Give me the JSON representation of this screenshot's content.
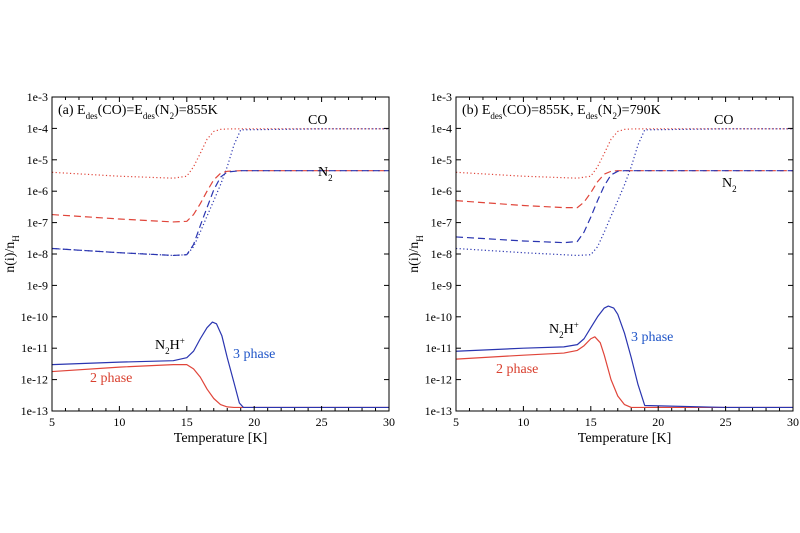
{
  "colors": {
    "red": "#e0453a",
    "blue": "#2a35b0",
    "label_red": "#d9402f",
    "label_blue": "#1f55c8"
  },
  "chart_data": [
    {
      "type": "line",
      "title_parts": {
        "prefix": "(a) E",
        "sub1": "des",
        "mid1": "(CO)=E",
        "sub2": "des",
        "mid2": "(N",
        "sub3": "2",
        "suffix": ")=855K"
      },
      "xlabel": "Temperature [K]",
      "ylabel_parts": {
        "main": "n(i)/n",
        "sub": "H"
      },
      "xlim": [
        5,
        30
      ],
      "ylim": [
        "1e-13",
        "1e-3"
      ],
      "yscale": "log",
      "x_ticks": [
        "5",
        "10",
        "15",
        "20",
        "25",
        "30"
      ],
      "y_ticks": [
        "1e-13",
        "1e-12",
        "1e-11",
        "1e-10",
        "1e-9",
        "1e-8",
        "1e-7",
        "1e-6",
        "1e-5",
        "1e-4",
        "1e-3"
      ],
      "annotations": {
        "co": "CO",
        "n2": {
          "main": "N",
          "sub": "2"
        },
        "n2hp": {
          "main": "N",
          "sub": "2",
          "mid": "H",
          "sup": "+"
        },
        "three_phase": "3 phase",
        "two_phase": "2 phase"
      },
      "series": [
        {
          "name": "CO",
          "phase": "2",
          "color": "red",
          "dash": "dot",
          "x": [
            5,
            10,
            14,
            15,
            15.5,
            16,
            16.5,
            17,
            17.5,
            18,
            19,
            25,
            30
          ],
          "y": [
            4e-06,
            3e-06,
            2.6e-06,
            3e-06,
            6e-06,
            1.6e-05,
            4.5e-05,
            8e-05,
            9.3e-05,
            9.6e-05,
            9.7e-05,
            9.7e-05,
            9.7e-05
          ]
        },
        {
          "name": "CO",
          "phase": "3",
          "color": "blue",
          "dash": "dot",
          "x": [
            5,
            10,
            14,
            15,
            15.5,
            16,
            16.5,
            17,
            17.5,
            18,
            18.5,
            19,
            25,
            30
          ],
          "y": [
            1.5e-08,
            1.1e-08,
            9e-09,
            9.5e-09,
            1.7e-08,
            5e-08,
            1.6e-07,
            5e-07,
            1.6e-06,
            6e-06,
            3e-05,
            9e-05,
            9.7e-05,
            9.7e-05
          ]
        },
        {
          "name": "N2",
          "phase": "2",
          "color": "red",
          "dash": "dash",
          "x": [
            5,
            10,
            14,
            15,
            15.5,
            16,
            16.5,
            17,
            17.5,
            18,
            19,
            25,
            30
          ],
          "y": [
            1.8e-07,
            1.3e-07,
            1.05e-07,
            1.1e-07,
            1.8e-07,
            4e-07,
            1e-06,
            2.3e-06,
            3.7e-06,
            4.3e-06,
            4.5e-06,
            4.5e-06,
            4.5e-06
          ]
        },
        {
          "name": "N2",
          "phase": "3",
          "color": "blue",
          "dash": "dash",
          "x": [
            5,
            10,
            14,
            15,
            15.5,
            16,
            16.5,
            17,
            17.5,
            18,
            19,
            25,
            30
          ],
          "y": [
            1.5e-08,
            1.1e-08,
            9e-09,
            9.5e-09,
            2e-08,
            8e-08,
            3e-07,
            1.1e-06,
            2.8e-06,
            4.1e-06,
            4.5e-06,
            4.5e-06,
            4.5e-06
          ]
        },
        {
          "name": "N2H+",
          "phase": "2",
          "color": "red",
          "dash": "solid",
          "x": [
            5,
            10,
            14,
            15,
            15.5,
            16,
            16.5,
            17,
            17.5,
            18,
            18.5,
            19,
            25,
            30
          ],
          "y": [
            1.8e-12,
            2.5e-12,
            3e-12,
            3e-12,
            2.2e-12,
            1.2e-12,
            5e-13,
            2.5e-13,
            1.6e-13,
            1.35e-13,
            1.3e-13,
            1.3e-13,
            1.3e-13,
            1.3e-13
          ]
        },
        {
          "name": "N2H+",
          "phase": "3",
          "color": "blue",
          "dash": "solid",
          "x": [
            5,
            10,
            14,
            15,
            15.5,
            16,
            16.5,
            16.9,
            17.2,
            17.6,
            18,
            18.5,
            18.9,
            19.2,
            25,
            30
          ],
          "y": [
            3e-12,
            3.6e-12,
            4e-12,
            5e-12,
            8e-12,
            2e-11,
            4.5e-11,
            6.8e-11,
            6e-11,
            2.5e-11,
            5e-12,
            8e-13,
            1.8e-13,
            1.3e-13,
            1.3e-13,
            1.3e-13
          ]
        }
      ]
    },
    {
      "type": "line",
      "title_parts": {
        "prefix": "(b) E",
        "sub1": "des",
        "mid1": "(CO)=855K, E",
        "sub2": "des",
        "mid2": "(N",
        "sub3": "2",
        "suffix": ")=790K"
      },
      "xlabel": "Temperature [K]",
      "ylabel_parts": {
        "main": "n(i)/n",
        "sub": "H"
      },
      "xlim": [
        5,
        30
      ],
      "ylim": [
        "1e-13",
        "1e-3"
      ],
      "yscale": "log",
      "x_ticks": [
        "5",
        "10",
        "15",
        "20",
        "25",
        "30"
      ],
      "y_ticks": [
        "1e-13",
        "1e-12",
        "1e-11",
        "1e-10",
        "1e-9",
        "1e-8",
        "1e-7",
        "1e-6",
        "1e-5",
        "1e-4",
        "1e-3"
      ],
      "annotations": {
        "co": "CO",
        "n2": {
          "main": "N",
          "sub": "2"
        },
        "n2hp": {
          "main": "N",
          "sub": "2",
          "mid": "H",
          "sup": "+"
        },
        "three_phase": "3 phase",
        "two_phase": "2 phase"
      },
      "series": [
        {
          "name": "CO",
          "phase": "2",
          "color": "red",
          "dash": "dot",
          "x": [
            5,
            10,
            14,
            15,
            15.5,
            16,
            16.5,
            17,
            17.5,
            18,
            19,
            25,
            30
          ],
          "y": [
            4e-06,
            3e-06,
            2.6e-06,
            3e-06,
            6e-06,
            1.6e-05,
            4.5e-05,
            8e-05,
            9.3e-05,
            9.6e-05,
            9.7e-05,
            9.7e-05,
            9.7e-05
          ]
        },
        {
          "name": "CO",
          "phase": "3",
          "color": "blue",
          "dash": "dot",
          "x": [
            5,
            10,
            14,
            15,
            15.5,
            16,
            16.5,
            17,
            17.5,
            18,
            18.5,
            19,
            25,
            30
          ],
          "y": [
            1.5e-08,
            1.1e-08,
            9e-09,
            9.5e-09,
            1.7e-08,
            5e-08,
            1.6e-07,
            5e-07,
            1.6e-06,
            6e-06,
            3e-05,
            9e-05,
            9.7e-05,
            9.7e-05
          ]
        },
        {
          "name": "N2",
          "phase": "2",
          "color": "red",
          "dash": "dash",
          "x": [
            5,
            10,
            13,
            14,
            14.5,
            15,
            15.5,
            16,
            16.5,
            17,
            18,
            25,
            30
          ],
          "y": [
            5e-07,
            3.5e-07,
            3e-07,
            3e-07,
            4.5e-07,
            9e-07,
            2e-06,
            3.5e-06,
            4.3e-06,
            4.5e-06,
            4.5e-06,
            4.5e-06,
            4.5e-06
          ]
        },
        {
          "name": "N2",
          "phase": "3",
          "color": "blue",
          "dash": "dash",
          "x": [
            5,
            10,
            13,
            14,
            14.5,
            15,
            15.5,
            16,
            16.5,
            17,
            17.5,
            18,
            25,
            30
          ],
          "y": [
            3.5e-08,
            2.6e-08,
            2.3e-08,
            2.5e-08,
            5e-08,
            1.5e-07,
            5e-07,
            1.5e-06,
            3.3e-06,
            4.3e-06,
            4.5e-06,
            4.5e-06,
            4.5e-06,
            4.5e-06
          ]
        },
        {
          "name": "N2H+",
          "phase": "2",
          "color": "red",
          "dash": "solid",
          "x": [
            5,
            10,
            13,
            14,
            14.5,
            15,
            15.3,
            15.7,
            16,
            16.5,
            17,
            17.5,
            18,
            25,
            30
          ],
          "y": [
            4.5e-12,
            6e-12,
            7e-12,
            8.5e-12,
            1.2e-11,
            2e-11,
            2.3e-11,
            1.5e-11,
            6e-12,
            1e-12,
            3e-13,
            1.6e-13,
            1.3e-13,
            1.3e-13,
            1.3e-13
          ]
        },
        {
          "name": "N2H+",
          "phase": "3",
          "color": "blue",
          "dash": "solid",
          "x": [
            5,
            10,
            13,
            14,
            14.5,
            15,
            15.5,
            16,
            16.3,
            16.7,
            17,
            17.5,
            18,
            18.5,
            19,
            25,
            30
          ],
          "y": [
            8e-12,
            1e-11,
            1.1e-11,
            1.3e-11,
            2e-11,
            4.5e-11,
            1e-10,
            1.9e-10,
            2.2e-10,
            1.9e-10,
            1.2e-10,
            3e-11,
            5e-12,
            7e-13,
            1.5e-13,
            1.3e-13,
            1.3e-13
          ]
        }
      ]
    }
  ]
}
